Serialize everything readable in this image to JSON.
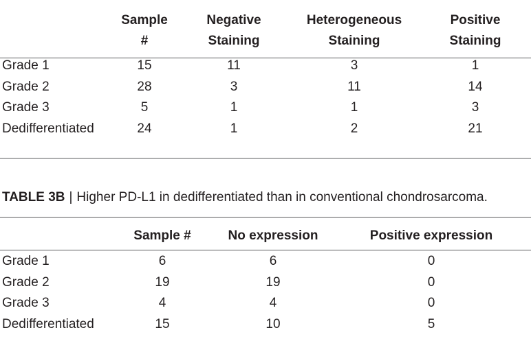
{
  "table_a": {
    "headers": [
      "",
      "Sample\n#",
      "Negative\nStaining",
      "Heterogeneous\nStaining",
      "Positive\nStaining"
    ],
    "header_lines": [
      [
        "",
        ""
      ],
      [
        "Sample",
        "#"
      ],
      [
        "Negative",
        "Staining"
      ],
      [
        "Heterogeneous",
        "Staining"
      ],
      [
        "Positive",
        "Staining"
      ]
    ],
    "rows": [
      [
        "Grade 1",
        "15",
        "11",
        "3",
        "1"
      ],
      [
        "Grade 2",
        "28",
        "3",
        "11",
        "14"
      ],
      [
        "Grade 3",
        "5",
        "1",
        "1",
        "3"
      ],
      [
        "Dedifferentiated",
        "24",
        "1",
        "2",
        "21"
      ]
    ]
  },
  "caption": {
    "label": "TABLE 3B",
    "separator": "|",
    "text": "Higher PD-L1 in dedifferentiated than in conventional chondrosarcoma."
  },
  "table_b": {
    "headers": [
      "",
      "Sample #",
      "No expression",
      "Positive expression"
    ],
    "rows": [
      [
        "Grade 1",
        "6",
        "6",
        "0"
      ],
      [
        "Grade 2",
        "19",
        "19",
        "0"
      ],
      [
        "Grade 3",
        "4",
        "4",
        "0"
      ],
      [
        "Dedifferentiated",
        "15",
        "10",
        "5"
      ]
    ]
  }
}
